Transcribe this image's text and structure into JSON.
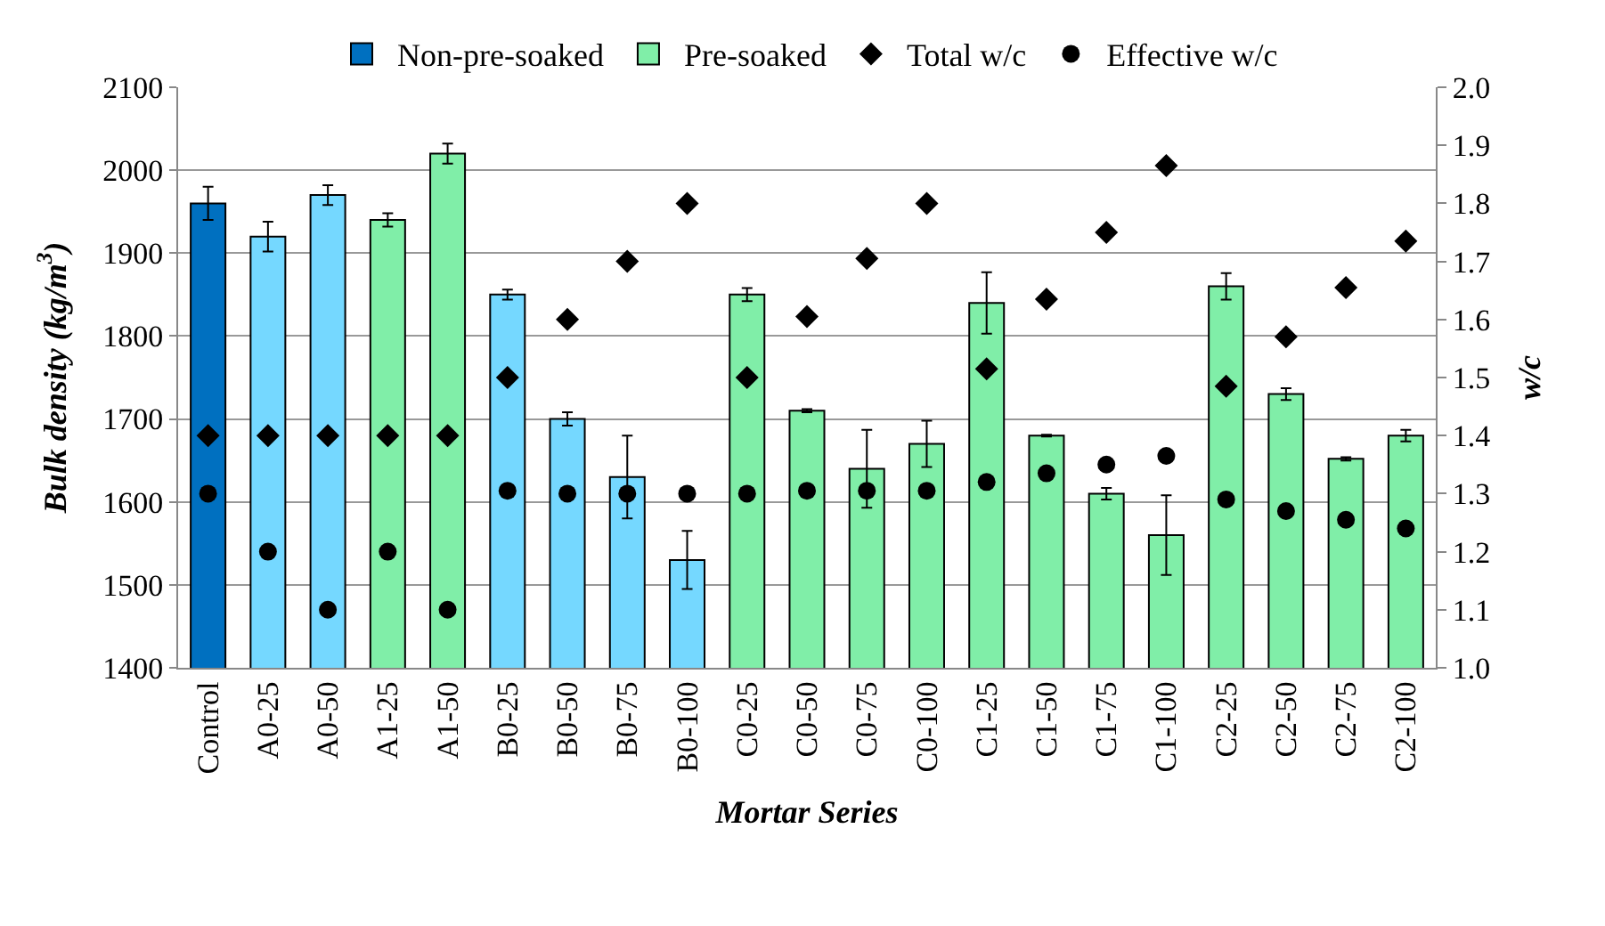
{
  "chart_data": {
    "type": "bar",
    "xlabel": "Mortar Series",
    "ylabel": "Bulk density (kg/m$^{3}$)",
    "y2label": "w/c",
    "categories": [
      "Control",
      "A0-25",
      "A0-50",
      "A1-25",
      "A1-50",
      "B0-25",
      "B0-50",
      "B0-75",
      "B0-100",
      "C0-25",
      "C0-50",
      "C0-75",
      "C0-100",
      "C1-25",
      "C1-50",
      "C1-75",
      "C1-100",
      "C2-25",
      "C2-50",
      "C2-75",
      "C2-100"
    ],
    "series": [
      {
        "name": "Non-pre-soaked",
        "type": "bar",
        "color": "#75d8ff",
        "colors": [
          "#0070c0",
          "#75d8ff",
          "#75d8ff",
          null,
          null,
          "#75d8ff",
          "#75d8ff",
          "#75d8ff",
          "#75d8ff",
          null,
          null,
          null,
          null,
          null,
          null,
          null,
          null,
          null,
          null,
          null,
          null
        ],
        "values": [
          1960,
          1920,
          1970,
          null,
          null,
          1850,
          1700,
          1630,
          1530,
          null,
          null,
          null,
          null,
          null,
          null,
          null,
          null,
          null,
          null,
          null,
          null
        ],
        "errors": [
          20,
          18,
          12,
          null,
          null,
          6,
          8,
          50,
          35,
          null,
          null,
          null,
          null,
          null,
          null,
          null,
          null,
          null,
          null,
          null,
          null
        ]
      },
      {
        "name": "Pre-soaked",
        "type": "bar",
        "color": "#80eea8",
        "values": [
          null,
          null,
          null,
          1940,
          2020,
          null,
          null,
          null,
          null,
          1850,
          1710,
          1640,
          1670,
          1840,
          1680,
          1610,
          1560,
          1860,
          1730,
          1652,
          1680
        ],
        "errors": [
          null,
          null,
          null,
          8,
          12,
          null,
          null,
          null,
          null,
          8,
          2,
          47,
          28,
          37,
          1,
          7,
          48,
          16,
          7,
          2,
          7
        ]
      },
      {
        "name": "Total w/c",
        "type": "scatter",
        "axis": "y2",
        "marker": "diamond",
        "color": "#000000",
        "values": [
          1.4,
          1.4,
          1.4,
          1.4,
          1.4,
          1.5,
          1.6,
          1.7,
          1.8,
          1.5,
          1.605,
          1.705,
          1.8,
          1.515,
          1.635,
          1.75,
          1.865,
          1.485,
          1.57,
          1.655,
          1.735
        ]
      },
      {
        "name": "Effective w/c",
        "type": "scatter",
        "axis": "y2",
        "marker": "circle",
        "color": "#000000",
        "values": [
          1.3,
          1.2,
          1.1,
          1.2,
          1.1,
          1.305,
          1.3,
          1.3,
          1.3,
          1.3,
          1.305,
          1.305,
          1.305,
          1.32,
          1.335,
          1.35,
          1.365,
          1.29,
          1.27,
          1.255,
          1.24
        ]
      }
    ],
    "ylim": [
      1400,
      2100
    ],
    "yticks": [
      1400,
      1500,
      1600,
      1700,
      1800,
      1900,
      2000,
      2100
    ],
    "y2lim": [
      1.0,
      2.0
    ],
    "y2ticks": [
      {
        "value": 1.0,
        "label": "1.0"
      },
      {
        "value": 1.1,
        "label": "1.1"
      },
      {
        "value": 1.2,
        "label": "1.2"
      },
      {
        "value": 1.3,
        "label": "1.3"
      },
      {
        "value": 1.4,
        "label": "1.4"
      },
      {
        "value": 1.5,
        "label": "1.5"
      },
      {
        "value": 1.6,
        "label": "1.6"
      },
      {
        "value": 1.7,
        "label": "1.7"
      },
      {
        "value": 1.8,
        "label": "1.8"
      },
      {
        "value": 1.9,
        "label": "1.9"
      },
      {
        "value": 2.0,
        "label": "2.0"
      }
    ],
    "grid": "y",
    "legend": "top"
  }
}
